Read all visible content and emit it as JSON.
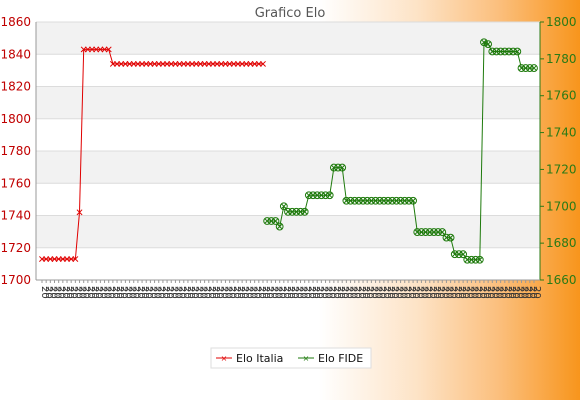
{
  "chart_data": {
    "type": "line",
    "title": "Grafico Elo",
    "xlabel": "",
    "ylabel_left": "",
    "ylabel_right": "",
    "ylim_left": [
      1700,
      1860
    ],
    "ylim_right": [
      1660,
      1800
    ],
    "yticks_left": [
      1700,
      1720,
      1740,
      1760,
      1780,
      1800,
      1820,
      1840,
      1860
    ],
    "yticks_right": [
      1660,
      1680,
      1700,
      1720,
      1740,
      1760,
      1780,
      1800
    ],
    "grid": true,
    "legend_position": "bottom-center",
    "n_points": 80,
    "series": [
      {
        "name": "Elo Italia",
        "axis": "left",
        "color": "#e00000",
        "marker": "x",
        "values": [
          1713,
          1713,
          1713,
          1713,
          1713,
          1713,
          1713,
          1713,
          1713,
          1742,
          1843,
          1843,
          1843,
          1843,
          1843,
          1843,
          1843,
          1834,
          1834,
          1834,
          1834,
          1834,
          1834,
          1834,
          1834,
          1834,
          1834,
          1834,
          1834,
          1834,
          1834,
          1834,
          1834,
          1834,
          1834,
          1834,
          1834,
          1834,
          1834,
          1834,
          1834,
          1834,
          1834,
          1834,
          1834,
          1834,
          1834,
          1834,
          1834,
          1834,
          1834,
          1834,
          1834,
          1834,
          null,
          null,
          null,
          null,
          null,
          null,
          null,
          null,
          null,
          null,
          null,
          null,
          null,
          null,
          null,
          null,
          null,
          null,
          null,
          null,
          null,
          null,
          null,
          null,
          null,
          null
        ]
      },
      {
        "name": "Elo FIDE",
        "axis": "right",
        "color": "#1e7a0c",
        "marker": "circle-x",
        "values": [
          null,
          null,
          null,
          null,
          null,
          null,
          null,
          null,
          null,
          null,
          null,
          null,
          null,
          null,
          null,
          null,
          null,
          null,
          null,
          null,
          null,
          null,
          null,
          null,
          null,
          null,
          null,
          null,
          null,
          null,
          null,
          null,
          null,
          null,
          null,
          null,
          null,
          null,
          null,
          null,
          null,
          null,
          null,
          null,
          null,
          null,
          null,
          null,
          null,
          null,
          null,
          null,
          null,
          null,
          1692,
          1692,
          1692,
          1689,
          1700,
          1697,
          1697,
          1697,
          1697,
          1697,
          1706,
          1706,
          1706,
          1706,
          1706,
          1706,
          1721,
          1721,
          1721,
          1703,
          1703,
          1703,
          1703,
          1703,
          1703,
          1703
        ]
      },
      {
        "name": "Elo FIDE",
        "axis": "right",
        "color": "#1e7a0c",
        "marker": "circle-x",
        "continuation": true,
        "values": [
          1703,
          1703,
          1703,
          1703,
          1703,
          1703,
          1703,
          1703,
          1703,
          1703,
          1686,
          1686,
          1686,
          1686,
          1686,
          1686,
          1686,
          1683,
          1683,
          1674,
          1674,
          1674,
          1671,
          1671,
          1671,
          1671,
          1789,
          1788,
          1784,
          1784,
          1784,
          1784,
          1784,
          1784,
          1784,
          1775,
          1775,
          1775,
          1775
        ]
      }
    ],
    "x_tick_labels": "dense date labels (illegible)"
  },
  "legend": {
    "items": [
      {
        "label": "Elo Italia",
        "color": "#e00000"
      },
      {
        "label": "Elo FIDE",
        "color": "#1e7a0c"
      }
    ]
  }
}
